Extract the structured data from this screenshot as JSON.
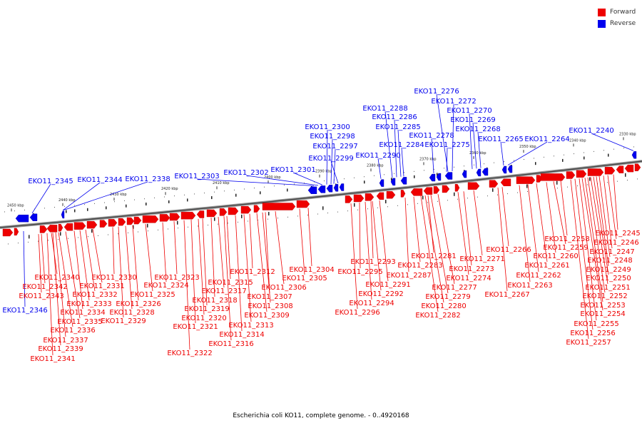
{
  "legend": {
    "forward": {
      "label": "Forward",
      "color": "#ee0000"
    },
    "reverse": {
      "label": "Reverse",
      "color": "#0000ee"
    }
  },
  "caption": "Escherichia coli KO11, complete genome. - 0..4920168",
  "ruler": {
    "ticks": [
      2330,
      2340,
      2350,
      2360,
      2370,
      2380,
      2390,
      2400,
      2410,
      2420,
      2430,
      2440,
      2450
    ],
    "unit": "kbp"
  },
  "genes": {
    "reverse": [
      "EKO11_2345",
      "EKO11_2344",
      "EKO11_2338",
      "EKO11_2303",
      "EKO11_2302",
      "EKO11_2301",
      "EKO11_2300",
      "EKO11_2298",
      "EKO11_2297",
      "EKO11_2299",
      "EKO11_2290",
      "EKO11_2288",
      "EKO11_2286",
      "EKO11_2285",
      "EKO11_2284",
      "EKO11_2276",
      "EKO11_2272",
      "EKO11_2270",
      "EKO11_2269",
      "EKO11_2268",
      "EKO11_2278",
      "EKO11_2275",
      "EKO11_2265",
      "EKO11_2264",
      "EKO11_2240",
      "EKO11_2346"
    ],
    "forward": [
      "EKO11_2340",
      "EKO11_2342",
      "EKO11_2343",
      "EKO11_2335",
      "EKO11_2336",
      "EKO11_2337",
      "EKO11_2339",
      "EKO11_2341",
      "EKO11_2331",
      "EKO11_2332",
      "EKO11_2333",
      "EKO11_2334",
      "EKO11_2330",
      "EKO11_2326",
      "EKO11_2328",
      "EKO11_2329",
      "EKO11_2325",
      "EKO11_2323",
      "EKO11_2324",
      "EKO11_2319",
      "EKO11_2320",
      "EKO11_2321",
      "EKO11_2322",
      "EKO11_2318",
      "EKO11_2317",
      "EKO11_2315",
      "EKO11_2312",
      "EKO11_2307",
      "EKO11_2308",
      "EKO11_2309",
      "EKO11_2313",
      "EKO11_2314",
      "EKO11_2316",
      "EKO11_2306",
      "EKO11_2304",
      "EKO11_2305",
      "EKO11_2293",
      "EKO11_2295",
      "EKO11_2291",
      "EKO11_2292",
      "EKO11_2294",
      "EKO11_2296",
      "EKO11_2283",
      "EKO11_2287",
      "EKO11_2281",
      "EKO11_2277",
      "EKO11_2279",
      "EKO11_2280",
      "EKO11_2282",
      "EKO11_2271",
      "EKO11_2273",
      "EKO11_2274",
      "EKO11_2266",
      "EKO11_2267",
      "EKO11_2262",
      "EKO11_2263",
      "EKO11_2260",
      "EKO11_2261",
      "EKO11_2258",
      "EKO11_2259",
      "EKO11_2245",
      "EKO11_2246",
      "EKO11_2247",
      "EKO11_2248",
      "EKO11_2249",
      "EKO11_2250",
      "EKO11_2251",
      "EKO11_2252",
      "EKO11_2253",
      "EKO11_2254",
      "EKO11_2255",
      "EKO11_2256",
      "EKO11_2257"
    ]
  }
}
